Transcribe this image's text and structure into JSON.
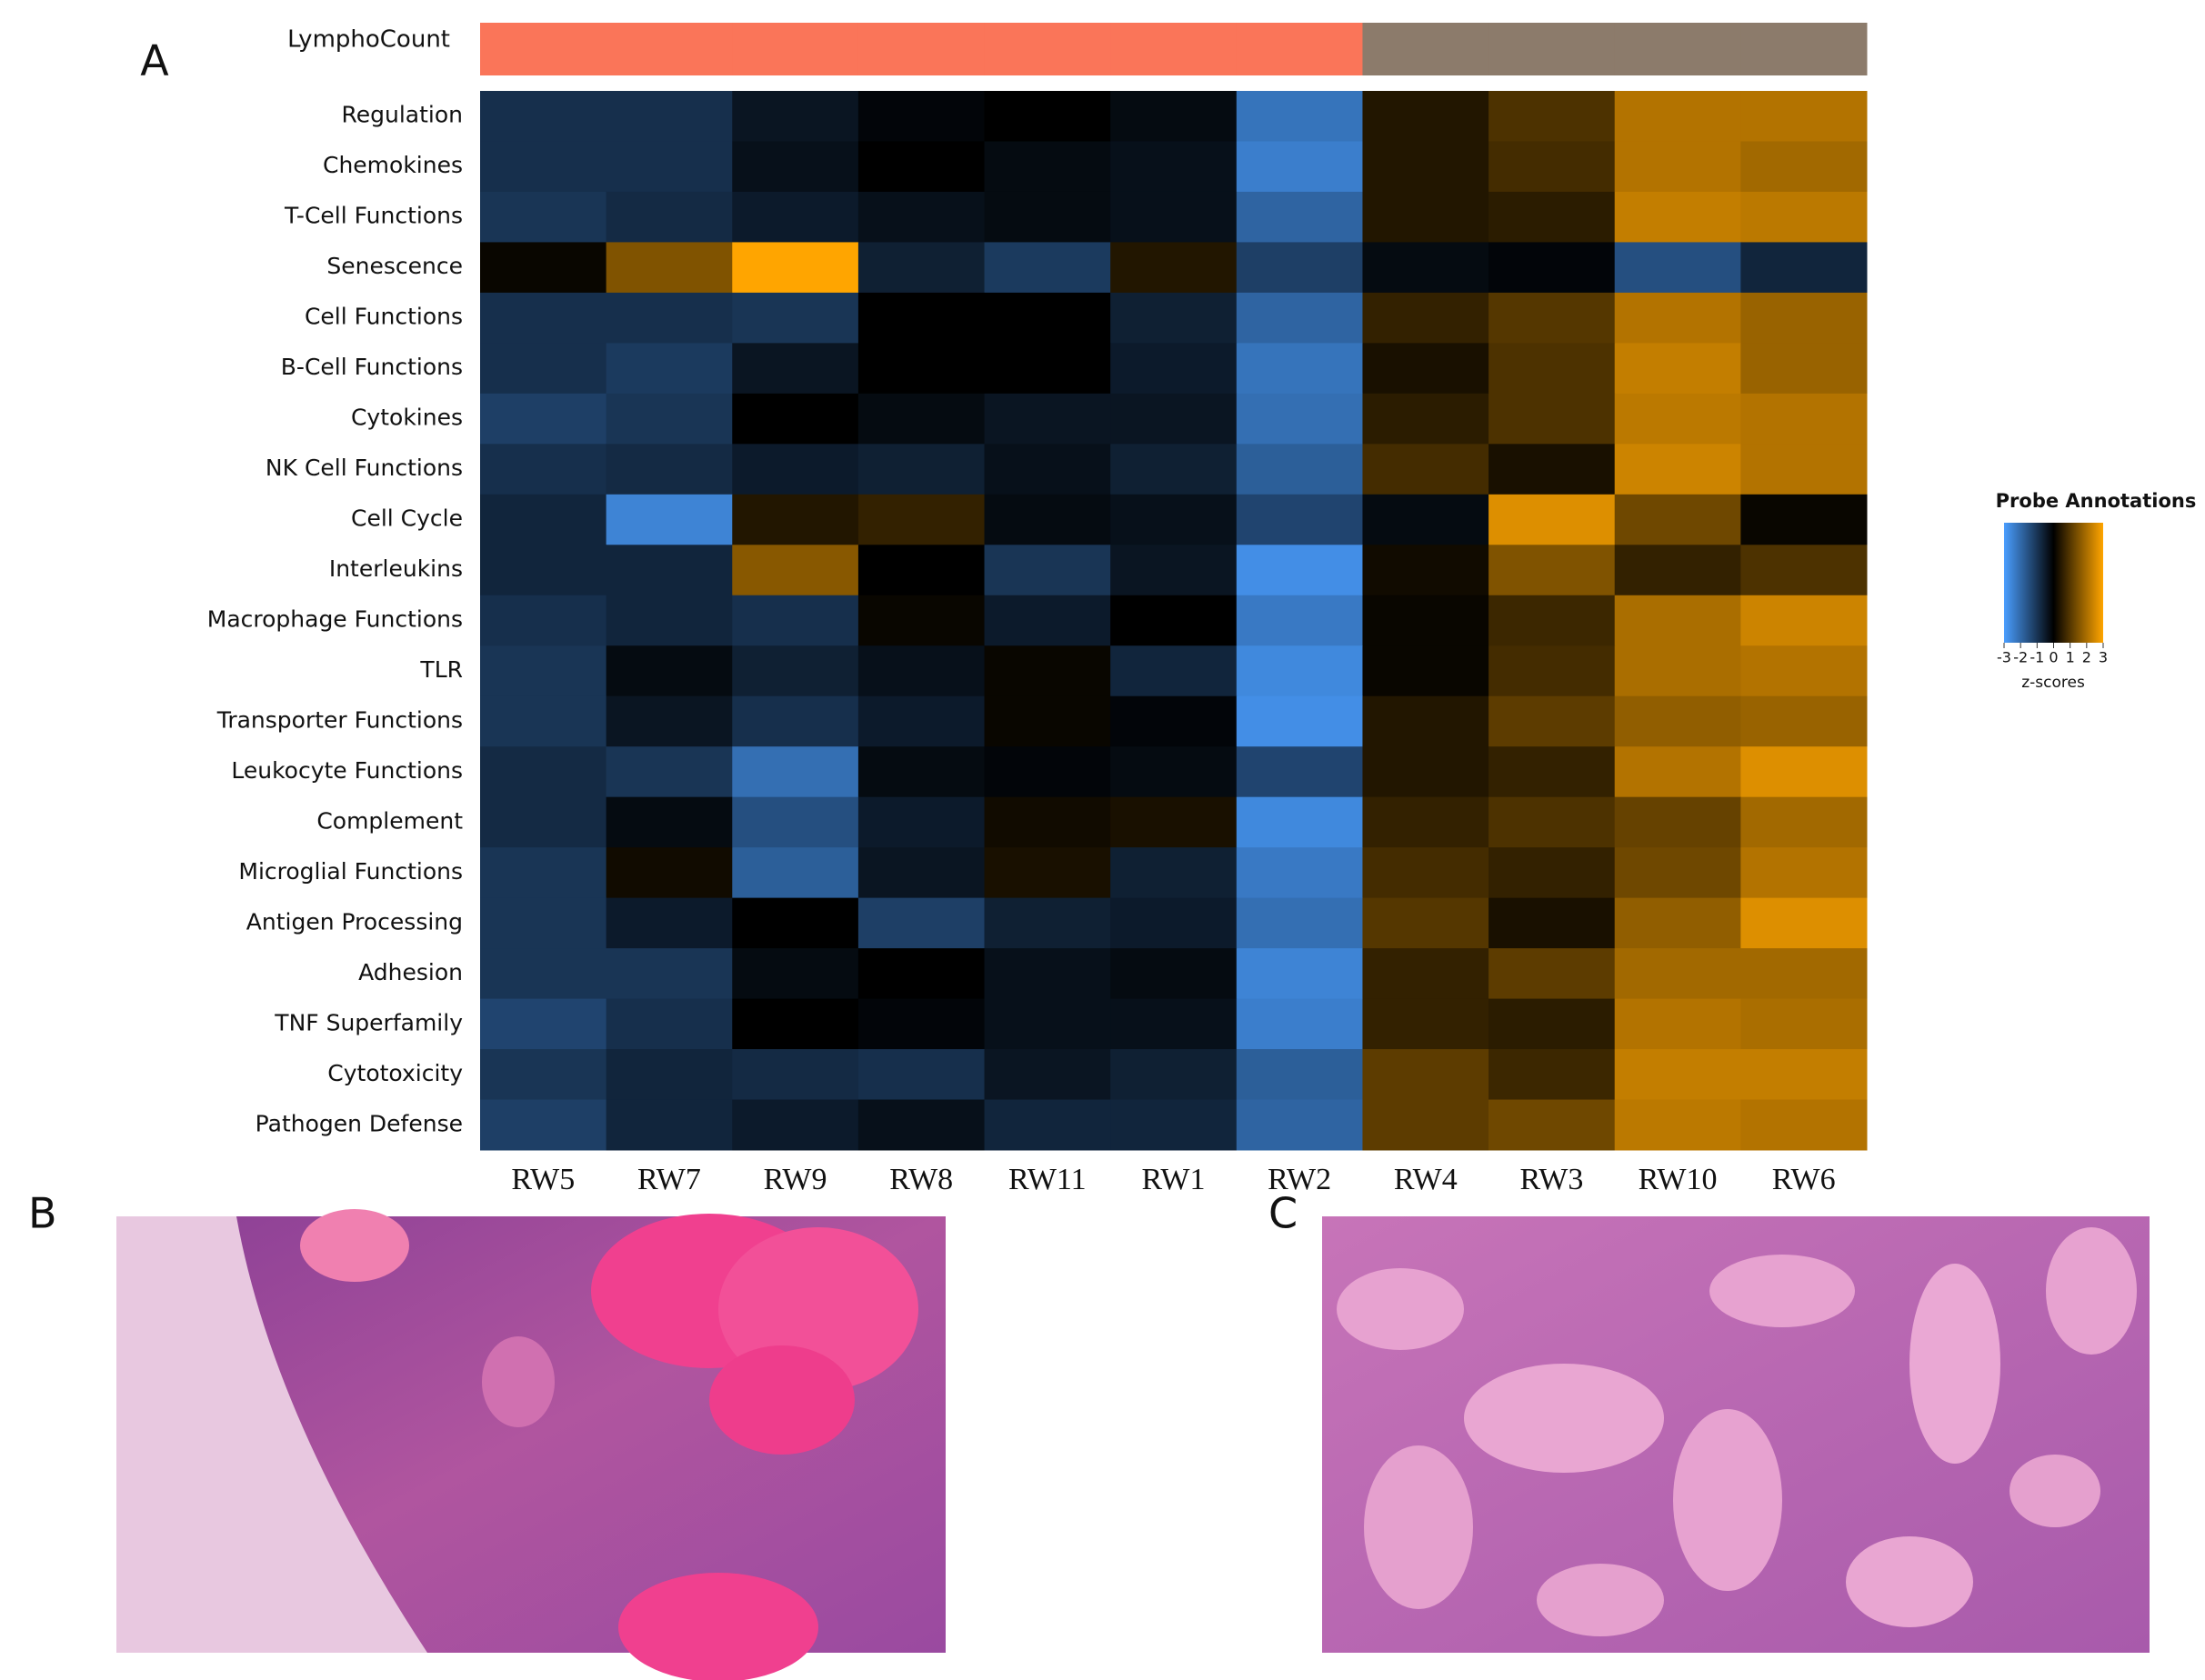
{
  "panel_labels": [
    "A",
    "B",
    "C"
  ],
  "chart_data": {
    "type": "heatmap",
    "annotation": {
      "label": "LymphoCount",
      "colors": [
        "#fa7559",
        "#fa7559",
        "#fa7559",
        "#fa7559",
        "#fa7559",
        "#fa7559",
        "#fa7559",
        "#8c7b6b",
        "#8c7b6b",
        "#8c7b6b",
        "#8c7b6b"
      ]
    },
    "categories": [
      "RW5",
      "RW7",
      "RW9",
      "RW8",
      "RW11",
      "RW1",
      "RW2",
      "RW4",
      "RW3",
      "RW10",
      "RW6"
    ],
    "rows": [
      "Regulation",
      "Chemokines",
      "T-Cell Functions",
      "Senescence",
      "Cell Functions",
      "B-Cell Functions",
      "Cytokines",
      "NK Cell Functions",
      "Cell Cycle",
      "Interleukins",
      "Macrophage Functions",
      "TLR",
      "Transporter Functions",
      "Leukocyte Functions",
      "Complement",
      "Microglial Functions",
      "Antigen Processing",
      "Adhesion",
      "TNF Superfamily",
      "Cytotoxicity",
      "Pathogen Defense"
    ],
    "values": [
      [
        -0.9,
        -0.9,
        -0.4,
        -0.1,
        0,
        -0.2,
        -2.2,
        0.4,
        0.9,
        2.1,
        2.1
      ],
      [
        -0.9,
        -0.9,
        -0.3,
        0,
        -0.2,
        -0.3,
        -2.4,
        0.4,
        0.8,
        2.1,
        1.9
      ],
      [
        -1.0,
        -0.8,
        -0.5,
        -0.3,
        -0.2,
        -0.3,
        -1.9,
        0.4,
        0.5,
        2.3,
        2.2
      ],
      [
        0.1,
        1.5,
        3.0,
        -0.6,
        -1.1,
        0.4,
        -1.2,
        -0.2,
        -0.1,
        -1.5,
        -0.7
      ],
      [
        -0.9,
        -0.9,
        -1.0,
        0,
        0,
        -0.6,
        -1.9,
        0.6,
        1.0,
        2.1,
        1.8
      ],
      [
        -0.9,
        -1.1,
        -0.4,
        0,
        0,
        -0.5,
        -2.2,
        0.3,
        0.9,
        2.3,
        1.8
      ],
      [
        -1.2,
        -1.0,
        0,
        -0.2,
        -0.4,
        -0.4,
        -2.1,
        0.5,
        0.9,
        2.2,
        2.1
      ],
      [
        -0.9,
        -0.8,
        -0.5,
        -0.6,
        -0.3,
        -0.6,
        -1.8,
        0.8,
        0.3,
        2.4,
        2.1
      ],
      [
        -0.7,
        -2.5,
        0.4,
        0.6,
        -0.2,
        -0.3,
        -1.3,
        -0.2,
        2.6,
        1.3,
        0.1
      ],
      [
        -0.7,
        -0.7,
        1.6,
        0,
        -1.0,
        -0.4,
        -2.7,
        0.2,
        1.5,
        0.6,
        0.9
      ],
      [
        -0.9,
        -0.7,
        -0.9,
        0.1,
        -0.5,
        0,
        -2.3,
        0.1,
        0.7,
        2.0,
        2.4
      ],
      [
        -1.0,
        -0.2,
        -0.6,
        -0.3,
        0.1,
        -0.7,
        -2.6,
        0.1,
        0.8,
        2.0,
        2.1
      ],
      [
        -1.0,
        -0.4,
        -0.9,
        -0.5,
        0.1,
        -0.1,
        -2.7,
        0.4,
        1.1,
        1.7,
        1.8
      ],
      [
        -0.8,
        -1.0,
        -2.1,
        -0.2,
        -0.1,
        -0.2,
        -1.3,
        0.4,
        0.6,
        2.1,
        2.6
      ],
      [
        -0.8,
        -0.2,
        -1.5,
        -0.5,
        0.2,
        0.3,
        -2.6,
        0.6,
        0.9,
        1.2,
        1.9
      ],
      [
        -1.0,
        0.2,
        -1.8,
        -0.4,
        0.3,
        -0.6,
        -2.3,
        0.8,
        0.6,
        1.3,
        2.1
      ],
      [
        -1.0,
        -0.5,
        0,
        -1.2,
        -0.6,
        -0.5,
        -2.1,
        1.0,
        0.3,
        1.7,
        2.6
      ],
      [
        -1.0,
        -1.0,
        -0.2,
        0,
        -0.3,
        -0.2,
        -2.5,
        0.6,
        1.1,
        1.9,
        1.9
      ],
      [
        -1.3,
        -0.9,
        0,
        -0.1,
        -0.3,
        -0.3,
        -2.4,
        0.6,
        0.5,
        2.1,
        2.0
      ],
      [
        -1.0,
        -0.7,
        -0.8,
        -0.9,
        -0.4,
        -0.6,
        -1.8,
        1.1,
        0.7,
        2.3,
        2.3
      ],
      [
        -1.2,
        -0.7,
        -0.5,
        -0.3,
        -0.7,
        -0.7,
        -1.9,
        1.1,
        1.3,
        2.2,
        2.1
      ]
    ],
    "colorscale": [
      "#4a9eff",
      "#000000",
      "#ffa500"
    ],
    "zlim": [
      -3,
      3
    ],
    "zticks": [
      -3,
      -2,
      -1,
      0,
      1,
      2,
      3
    ],
    "colorbar_title": "Probe Annotations",
    "colorbar_label": "z-scores"
  }
}
